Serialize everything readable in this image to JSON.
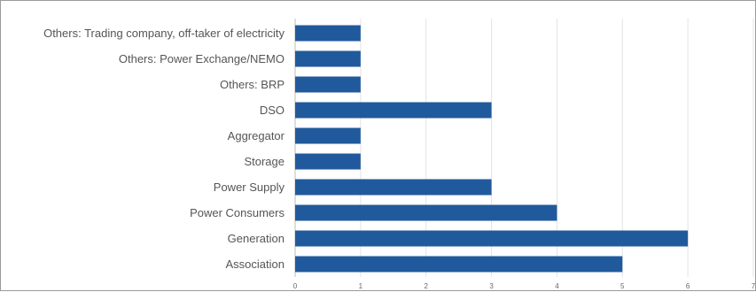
{
  "chart_data": {
    "type": "bar",
    "orientation": "horizontal",
    "categories": [
      "Others: Trading company, off-taker of electricity",
      "Others: Power Exchange/NEMO",
      "Others: BRP",
      "DSO",
      "Aggregator",
      "Storage",
      "Power Supply",
      "Power Consumers",
      "Generation",
      "Association"
    ],
    "values": [
      1,
      1,
      1,
      3,
      1,
      1,
      3,
      4,
      6,
      5
    ],
    "xlim": [
      0,
      7
    ],
    "xticks": [
      "0",
      "1",
      "2",
      "3",
      "4",
      "5",
      "6",
      "7"
    ],
    "title": "",
    "xlabel": "",
    "ylabel": "",
    "grid": "vertical",
    "legend": "none",
    "bar_color": "#215a9c",
    "grid_color": "#e3e3e3"
  }
}
